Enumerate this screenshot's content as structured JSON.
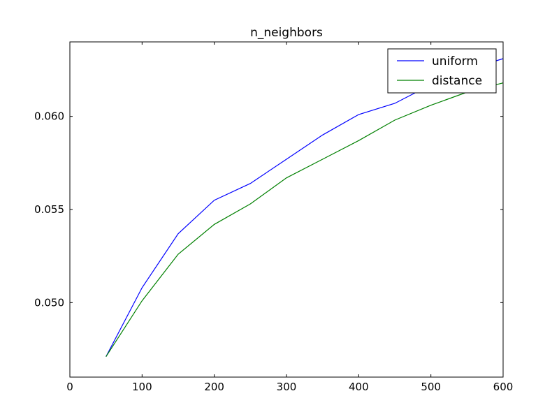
{
  "chart_data": {
    "type": "line",
    "title": "n_neighbors",
    "xlabel": "",
    "ylabel": "",
    "xlim": [
      0,
      600
    ],
    "ylim": [
      0.046,
      0.064
    ],
    "x_ticks": [
      0,
      100,
      200,
      300,
      400,
      500,
      600
    ],
    "x_tick_labels": [
      "0",
      "100",
      "200",
      "300",
      "400",
      "500",
      "600"
    ],
    "y_ticks": [
      0.05,
      0.055,
      0.06
    ],
    "y_tick_labels": [
      "0.050",
      "0.055",
      "0.060"
    ],
    "grid": false,
    "legend_position": "top-right",
    "series": [
      {
        "name": "uniform",
        "color": "#0000ff",
        "x": [
          50,
          100,
          150,
          200,
          250,
          300,
          350,
          400,
          450,
          500,
          550,
          600
        ],
        "y": [
          0.0471,
          0.0508,
          0.0537,
          0.0555,
          0.0564,
          0.0577,
          0.059,
          0.0601,
          0.0607,
          0.0617,
          0.0625,
          0.0631
        ]
      },
      {
        "name": "distance",
        "color": "#008000",
        "x": [
          50,
          100,
          150,
          200,
          250,
          300,
          350,
          400,
          450,
          500,
          550,
          600
        ],
        "y": [
          0.0471,
          0.0501,
          0.0526,
          0.0542,
          0.0553,
          0.0567,
          0.0577,
          0.0587,
          0.0598,
          0.0606,
          0.0613,
          0.0618
        ]
      }
    ]
  }
}
